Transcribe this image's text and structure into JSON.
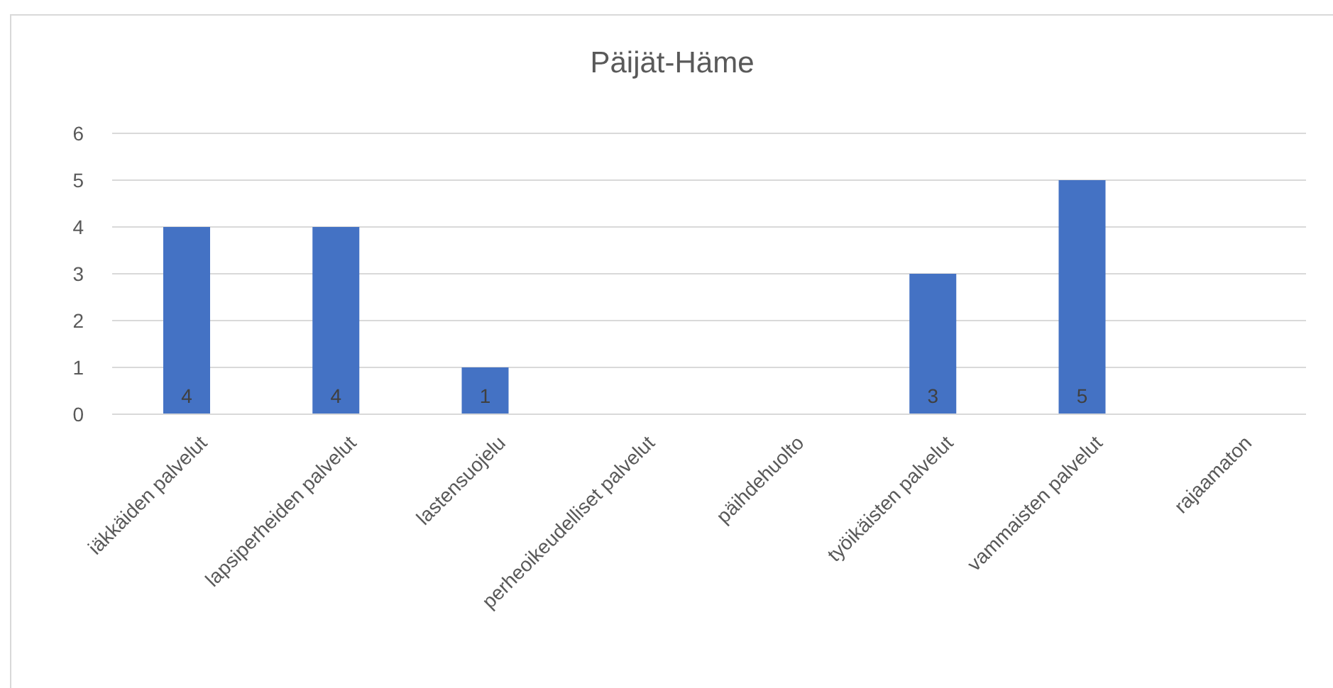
{
  "chart_data": {
    "type": "bar",
    "title": "Päijät-Häme",
    "categories": [
      "iäkkäiden palvelut",
      "lapsiperheiden palvelut",
      "lastensuojelu",
      "perheoikeudelliset palvelut",
      "päihdehuolto",
      "työikäisten palvelut",
      "vammaisten palvelut",
      "rajaamaton"
    ],
    "values": [
      4,
      4,
      1,
      null,
      null,
      3,
      5,
      null
    ],
    "color": "#4472c4",
    "ylim": [
      0,
      6
    ],
    "yticks": [
      0,
      1,
      2,
      3,
      4,
      5,
      6
    ],
    "grid": "y",
    "data_labels": true
  }
}
